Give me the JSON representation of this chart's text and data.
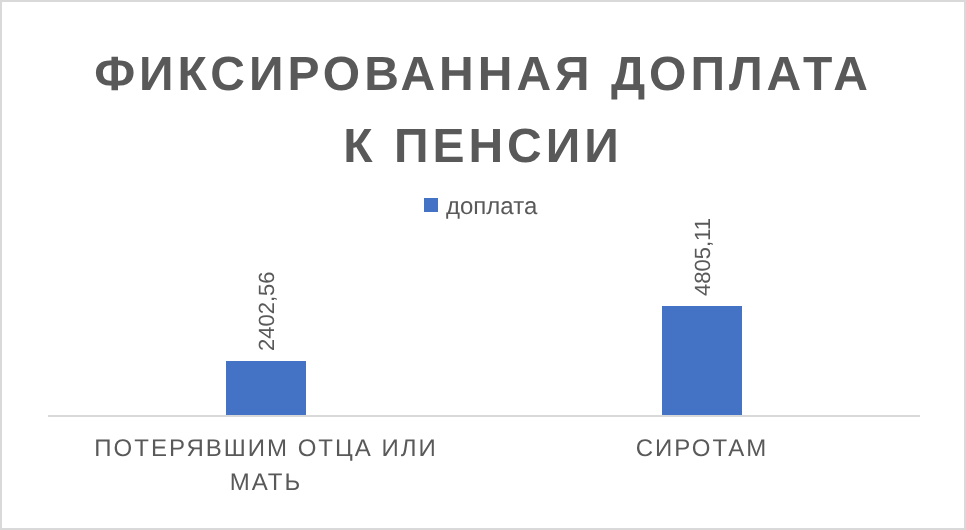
{
  "chart_data": {
    "type": "bar",
    "title": "ФИКСИРОВАННАЯ ДОПЛАТА К ПЕНСИИ",
    "categories": [
      "ПОТЕРЯВШИМ ОТЦА ИЛИ МАТЬ",
      "СИРОТАМ"
    ],
    "series": [
      {
        "name": "доплата",
        "color": "#4472c4",
        "values": [
          2402.56,
          4805.11
        ],
        "value_labels": [
          "2402,56",
          "4805,11"
        ]
      }
    ],
    "legend": "top"
  }
}
